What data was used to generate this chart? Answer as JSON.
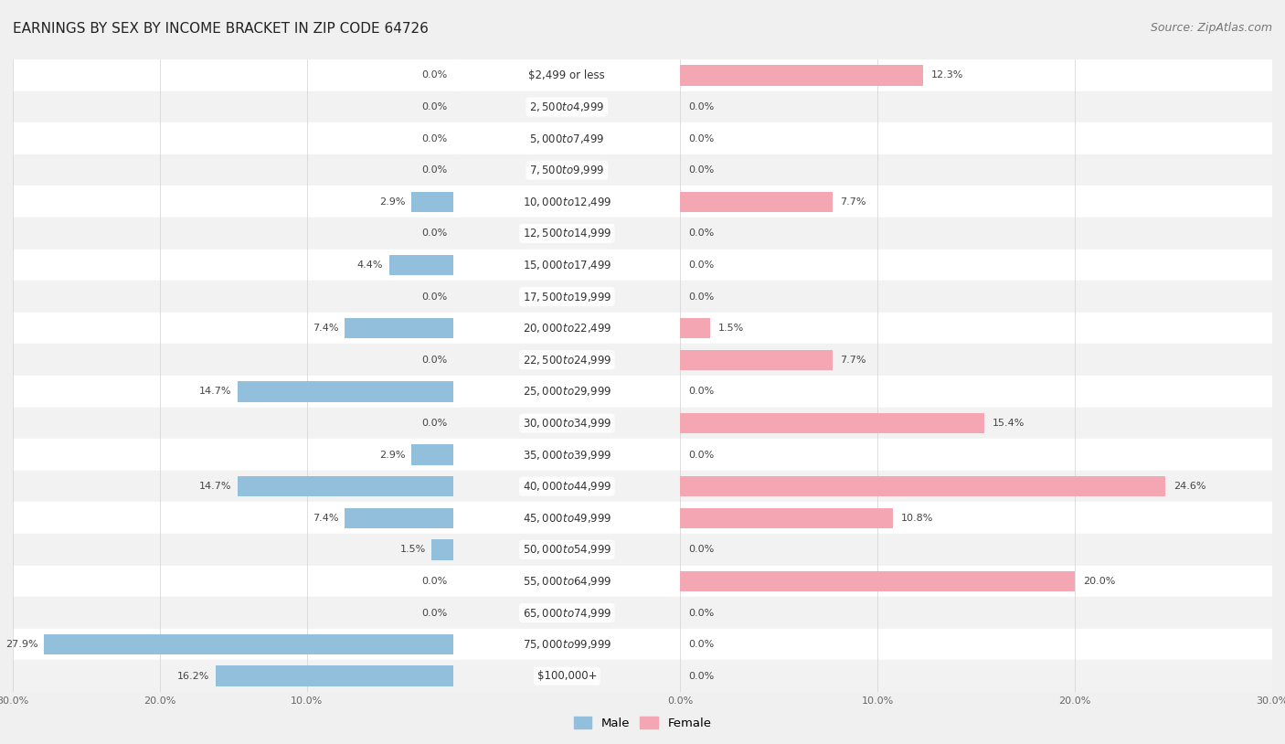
{
  "title": "EARNINGS BY SEX BY INCOME BRACKET IN ZIP CODE 64726",
  "source": "Source: ZipAtlas.com",
  "categories": [
    "$2,499 or less",
    "$2,500 to $4,999",
    "$5,000 to $7,499",
    "$7,500 to $9,999",
    "$10,000 to $12,499",
    "$12,500 to $14,999",
    "$15,000 to $17,499",
    "$17,500 to $19,999",
    "$20,000 to $22,499",
    "$22,500 to $24,999",
    "$25,000 to $29,999",
    "$30,000 to $34,999",
    "$35,000 to $39,999",
    "$40,000 to $44,999",
    "$45,000 to $49,999",
    "$50,000 to $54,999",
    "$55,000 to $64,999",
    "$65,000 to $74,999",
    "$75,000 to $99,999",
    "$100,000+"
  ],
  "male": [
    0.0,
    0.0,
    0.0,
    0.0,
    2.9,
    0.0,
    4.4,
    0.0,
    7.4,
    0.0,
    14.7,
    0.0,
    2.9,
    14.7,
    7.4,
    1.5,
    0.0,
    0.0,
    27.9,
    16.2
  ],
  "female": [
    12.3,
    0.0,
    0.0,
    0.0,
    7.7,
    0.0,
    0.0,
    0.0,
    1.5,
    7.7,
    0.0,
    15.4,
    0.0,
    24.6,
    10.8,
    0.0,
    20.0,
    0.0,
    0.0,
    0.0
  ],
  "male_color": "#92BFDB",
  "female_color": "#F4A7B3",
  "background_color": "#f0f0f0",
  "row_bg_odd": "#f7f7f7",
  "row_bg_even": "#ffffff",
  "xlim": 30.0,
  "legend_male": "Male",
  "legend_female": "Female",
  "title_fontsize": 11,
  "source_fontsize": 9,
  "label_fontsize": 8.5,
  "value_fontsize": 8,
  "bar_height": 0.65
}
